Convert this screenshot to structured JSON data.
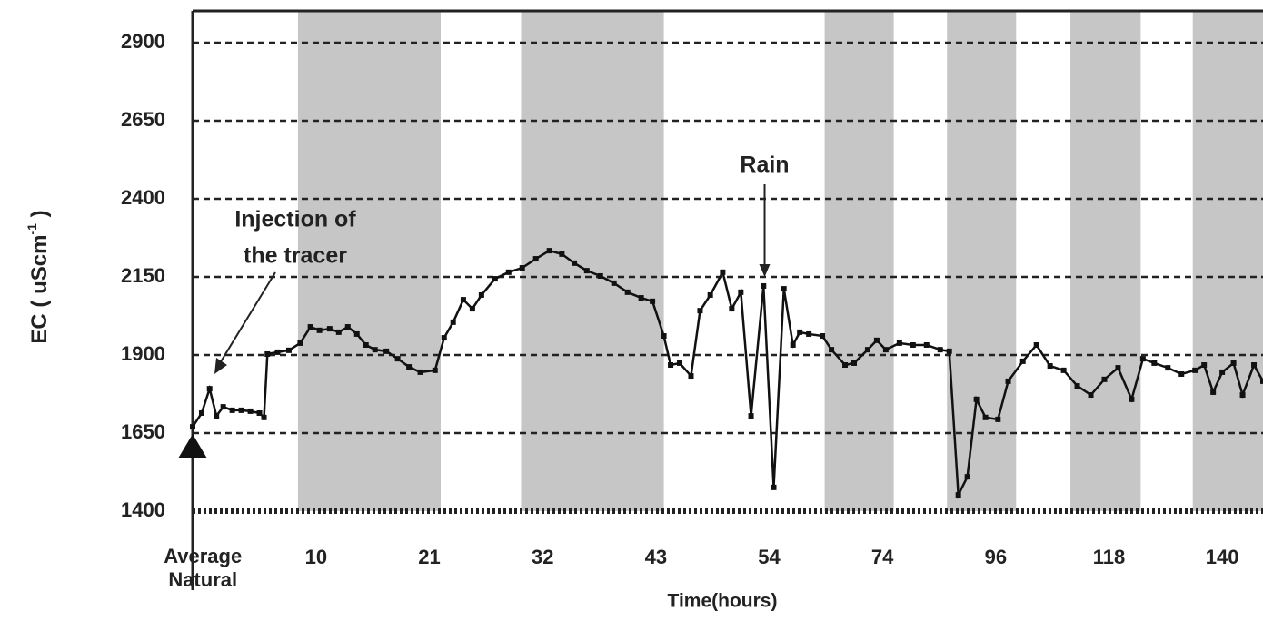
{
  "chart_data": {
    "type": "line",
    "ylabel": {
      "text": "EC ( uScm",
      "sup": "-1",
      "end": " )"
    },
    "xlabel": "Time(hours)",
    "xlim": [
      -0.05,
      9.4
    ],
    "ylim": [
      1400,
      2950
    ],
    "yticks": [
      1400,
      1650,
      1900,
      2150,
      2400,
      2650,
      2900
    ],
    "xticks": [
      {
        "value": 0,
        "label": "Average Natural"
      },
      {
        "value": 1,
        "label": "10"
      },
      {
        "value": 2,
        "label": "21"
      },
      {
        "value": 3,
        "label": "32"
      },
      {
        "value": 4,
        "label": "43"
      },
      {
        "value": 5,
        "label": "54"
      },
      {
        "value": 6,
        "label": "74"
      },
      {
        "value": 7,
        "label": "96"
      },
      {
        "value": 8,
        "label": "118"
      },
      {
        "value": 9,
        "label": "140"
      }
    ],
    "grid": true,
    "shaded_periods": [
      [
        0.88,
        2.14
      ],
      [
        2.85,
        4.11
      ],
      [
        5.53,
        6.14
      ],
      [
        6.61,
        7.22
      ],
      [
        7.7,
        8.32
      ],
      [
        8.78,
        9.4
      ]
    ],
    "shade_color": "#c6c6c6",
    "series": [
      {
        "color": "#111111",
        "x": [
          -0.05,
          0.03,
          0.1,
          0.16,
          0.22,
          0.3,
          0.38,
          0.46,
          0.54,
          0.58,
          0.61,
          0.7,
          0.8,
          0.9,
          0.99,
          1.07,
          1.16,
          1.24,
          1.32,
          1.4,
          1.48,
          1.56,
          1.66,
          1.76,
          1.86,
          1.96,
          2.09,
          2.17,
          2.25,
          2.34,
          2.42,
          2.5,
          2.62,
          2.74,
          2.86,
          2.98,
          3.1,
          3.21,
          3.32,
          3.43,
          3.55,
          3.67,
          3.79,
          3.91,
          4.01,
          4.11,
          4.17,
          4.25,
          4.35,
          4.43,
          4.52,
          4.63,
          4.71,
          4.79,
          4.88,
          4.99,
          5.08,
          5.17,
          5.25,
          5.31,
          5.39,
          5.51,
          5.59,
          5.71,
          5.79,
          5.91,
          5.99,
          6.07,
          6.19,
          6.31,
          6.43,
          6.55,
          6.63,
          6.71,
          6.79,
          6.87,
          6.95,
          7.06,
          7.15,
          7.28,
          7.4,
          7.52,
          7.64,
          7.76,
          7.88,
          8.0,
          8.12,
          8.24,
          8.34,
          8.44,
          8.56,
          8.68,
          8.8,
          8.88,
          8.96,
          9.04,
          9.14,
          9.22,
          9.32,
          9.4
        ],
        "values": [
          1670,
          1714,
          1792,
          1705,
          1734,
          1723,
          1723,
          1720,
          1714,
          1700,
          1903,
          1909,
          1915,
          1938,
          1990,
          1979,
          1984,
          1973,
          1990,
          1967,
          1932,
          1917,
          1912,
          1888,
          1862,
          1845,
          1851,
          1955,
          2005,
          2077,
          2048,
          2092,
          2144,
          2165,
          2179,
          2208,
          2234,
          2223,
          2194,
          2170,
          2153,
          2130,
          2101,
          2083,
          2072,
          1961,
          1868,
          1874,
          1833,
          2042,
          2092,
          2165,
          2048,
          2101,
          1705,
          2121,
          1476,
          2112,
          1932,
          1973,
          1967,
          1961,
          1917,
          1868,
          1874,
          1917,
          1947,
          1917,
          1938,
          1932,
          1932,
          1917,
          1912,
          1452,
          1510,
          1758,
          1700,
          1694,
          1816,
          1880,
          1932,
          1865,
          1851,
          1801,
          1772,
          1822,
          1859,
          1758,
          1888,
          1874,
          1859,
          1839,
          1851,
          1868,
          1781,
          1845,
          1874,
          1772,
          1868,
          1816
        ]
      }
    ],
    "annotations": [
      {
        "lines": [
          "Injection of",
          "the tracer"
        ],
        "x": 0.3,
        "y": 1865
      },
      {
        "lines": [
          "Rain"
        ],
        "x": 5.0,
        "y": 2150
      }
    ]
  }
}
